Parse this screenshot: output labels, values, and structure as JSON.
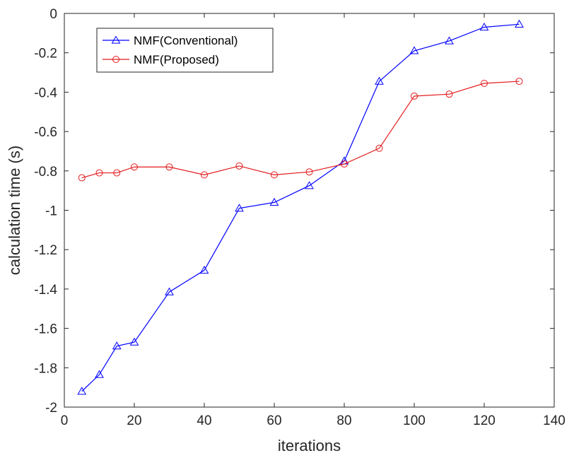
{
  "chart_data": {
    "type": "line",
    "title": "",
    "xlabel": "iterations",
    "ylabel": "calculation time (s)",
    "xlim": [
      0,
      140
    ],
    "ylim": [
      -2,
      0
    ],
    "xticks": [
      0,
      20,
      40,
      60,
      80,
      100,
      120,
      140
    ],
    "yticks": [
      -2,
      -1.8,
      -1.6,
      -1.4,
      -1.2,
      -1,
      -0.8,
      -0.6,
      -0.4,
      -0.2,
      0
    ],
    "xtick_labels": [
      "0",
      "20",
      "40",
      "60",
      "80",
      "100",
      "120",
      "140"
    ],
    "ytick_labels": [
      "-2",
      "-1.8",
      "-1.6",
      "-1.4",
      "-1.2",
      "-1",
      "-0.8",
      "-0.6",
      "-0.4",
      "-0.2",
      "0"
    ],
    "grid": false,
    "legend_position": "top-left",
    "series": [
      {
        "name": "NMF(Conventional)",
        "color": "#0000ff",
        "marker": "triangle",
        "x": [
          5,
          10,
          15,
          20,
          30,
          40,
          50,
          60,
          70,
          80,
          90,
          100,
          110,
          120,
          130
        ],
        "y": [
          -1.92,
          -1.835,
          -1.69,
          -1.67,
          -1.415,
          -1.305,
          -0.99,
          -0.96,
          -0.875,
          -0.75,
          -0.345,
          -0.19,
          -0.14,
          -0.07,
          -0.055
        ]
      },
      {
        "name": "NMF(Proposed)",
        "color": "#e31a1c",
        "marker": "circle",
        "x": [
          5,
          10,
          15,
          20,
          30,
          40,
          50,
          60,
          70,
          80,
          90,
          100,
          110,
          120,
          130
        ],
        "y": [
          -0.835,
          -0.81,
          -0.81,
          -0.78,
          -0.78,
          -0.82,
          -0.775,
          -0.82,
          -0.805,
          -0.765,
          -0.685,
          -0.42,
          -0.41,
          -0.355,
          -0.345
        ]
      }
    ]
  }
}
